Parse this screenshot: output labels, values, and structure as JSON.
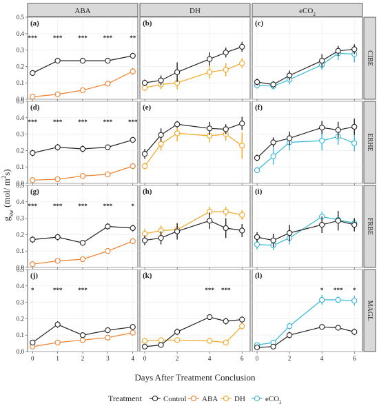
{
  "chart_data": {
    "type": "line",
    "facet_columns": [
      "ABA",
      "DH",
      "eCO2"
    ],
    "facet_rows": [
      "CIBE",
      "ERHE",
      "FRBE",
      "MAGL"
    ],
    "ylabel": "gsw (mol/m²s)",
    "ylim": [
      0,
      0.5
    ],
    "yticks": [
      "0.0",
      "0.1",
      "0.2",
      "0.3",
      "0.4",
      "0.5"
    ],
    "xlabel": "Days After Treatment Conclusion",
    "legend": {
      "title": "Treatment",
      "position": "bottom",
      "items": [
        {
          "label": "Control",
          "color": "#222222"
        },
        {
          "label": "ABA",
          "color": "#f07f2c"
        },
        {
          "label": "DH",
          "color": "#f2a51f"
        },
        {
          "label": "eCO2",
          "color": "#33b8d6"
        }
      ]
    },
    "series_colors": {
      "Control": "#222222",
      "ABA": "#f07f2c",
      "DH": "#f2a51f",
      "eCO2": "#33b8d6"
    },
    "column_x": {
      "ABA": {
        "ticks": [
          0,
          1,
          2,
          3,
          4
        ],
        "xlim": [
          -0.2,
          4.2
        ]
      },
      "DH": {
        "ticks": [
          0,
          2,
          4,
          6
        ],
        "xlim": [
          -0.3,
          6.5
        ]
      },
      "eCO2": {
        "ticks": [
          0,
          2,
          4,
          6
        ],
        "xlim": [
          -0.3,
          6.5
        ]
      }
    },
    "panels": [
      {
        "label": "(a)",
        "row": "CIBE",
        "col": "ABA",
        "sig": [
          "***",
          "***",
          "***",
          "***",
          "**"
        ],
        "sig_x": [
          0,
          1,
          2,
          3,
          4
        ],
        "series": [
          {
            "treatment": "Control",
            "x": [
              0,
              1,
              2,
              3,
              4
            ],
            "y": [
              0.16,
              0.235,
              0.235,
              0.235,
              0.265
            ],
            "err": [
              0.01,
              0.01,
              0.01,
              0.01,
              0.01
            ]
          },
          {
            "treatment": "ABA",
            "x": [
              0,
              1,
              2,
              3,
              4
            ],
            "y": [
              0.015,
              0.03,
              0.055,
              0.095,
              0.17
            ],
            "err": [
              0.005,
              0.005,
              0.008,
              0.008,
              0.02
            ]
          }
        ]
      },
      {
        "label": "(b)",
        "row": "CIBE",
        "col": "DH",
        "sig": [],
        "sig_x": [],
        "series": [
          {
            "treatment": "Control",
            "x": [
              0,
              1,
              2,
              4,
              5,
              6
            ],
            "y": [
              0.1,
              0.115,
              0.165,
              0.245,
              0.285,
              0.32
            ],
            "err": [
              0.02,
              0.03,
              0.06,
              0.04,
              0.03,
              0.03
            ]
          },
          {
            "treatment": "DH",
            "x": [
              0,
              1,
              2,
              4,
              5,
              6
            ],
            "y": [
              0.07,
              0.09,
              0.1,
              0.165,
              0.18,
              0.22
            ],
            "err": [
              0.02,
              0.03,
              0.04,
              0.04,
              0.04,
              0.03
            ]
          }
        ]
      },
      {
        "label": "(c)",
        "row": "CIBE",
        "col": "eCO2",
        "sig": [],
        "sig_x": [],
        "series": [
          {
            "treatment": "Control",
            "x": [
              0,
              1,
              2,
              4,
              5,
              6
            ],
            "y": [
              0.105,
              0.09,
              0.145,
              0.235,
              0.295,
              0.305
            ],
            "err": [
              0.02,
              0.02,
              0.03,
              0.04,
              0.03,
              0.03
            ]
          },
          {
            "treatment": "eCO2",
            "x": [
              0,
              1,
              2,
              4,
              5,
              6
            ],
            "y": [
              0.085,
              0.08,
              0.12,
              0.21,
              0.28,
              0.275
            ],
            "err": [
              0.02,
              0.02,
              0.03,
              0.03,
              0.04,
              0.05
            ]
          }
        ]
      },
      {
        "label": "(d)",
        "row": "ERHE",
        "col": "ABA",
        "sig": [
          "***",
          "***",
          "***",
          "***",
          "***"
        ],
        "sig_x": [
          0,
          1,
          2,
          3,
          4
        ],
        "series": [
          {
            "treatment": "Control",
            "x": [
              0,
              1,
              2,
              3,
              4
            ],
            "y": [
              0.185,
              0.22,
              0.21,
              0.22,
              0.265
            ],
            "err": [
              0.02,
              0.02,
              0.02,
              0.01,
              0.01
            ]
          },
          {
            "treatment": "ABA",
            "x": [
              0,
              1,
              2,
              3,
              4
            ],
            "y": [
              0.02,
              0.025,
              0.045,
              0.055,
              0.105
            ],
            "err": [
              0.005,
              0.005,
              0.008,
              0.008,
              0.015
            ]
          }
        ]
      },
      {
        "label": "(e)",
        "row": "ERHE",
        "col": "DH",
        "sig": [],
        "sig_x": [],
        "series": [
          {
            "treatment": "Control",
            "x": [
              0,
              1,
              2,
              4,
              5,
              6
            ],
            "y": [
              0.18,
              0.295,
              0.36,
              0.335,
              0.33,
              0.365
            ],
            "err": [
              0.03,
              0.04,
              0.02,
              0.04,
              0.03,
              0.04
            ]
          },
          {
            "treatment": "DH",
            "x": [
              0,
              1,
              2,
              4,
              5,
              6
            ],
            "y": [
              0.105,
              0.24,
              0.305,
              0.29,
              0.3,
              0.23
            ],
            "err": [
              0.02,
              0.04,
              0.05,
              0.04,
              0.04,
              0.08
            ]
          }
        ]
      },
      {
        "label": "(f)",
        "row": "ERHE",
        "col": "eCO2",
        "sig": [],
        "sig_x": [],
        "series": [
          {
            "treatment": "Control",
            "x": [
              0,
              1,
              2,
              4,
              5,
              6
            ],
            "y": [
              0.155,
              0.25,
              0.275,
              0.34,
              0.325,
              0.345
            ],
            "err": [
              0.02,
              0.03,
              0.04,
              0.04,
              0.05,
              0.05
            ]
          },
          {
            "treatment": "eCO2",
            "x": [
              0,
              1,
              2,
              4,
              5,
              6
            ],
            "y": [
              0.08,
              0.165,
              0.25,
              0.26,
              0.285,
              0.245
            ],
            "err": [
              0.015,
              0.05,
              0.05,
              0.06,
              0.05,
              0.05
            ]
          }
        ]
      },
      {
        "label": "(g)",
        "row": "FRBE",
        "col": "ABA",
        "sig": [
          "***",
          "***",
          "***",
          "***",
          "*"
        ],
        "sig_x": [
          0,
          1,
          2,
          3,
          4
        ],
        "series": [
          {
            "treatment": "Control",
            "x": [
              0,
              1,
              2,
              3,
              4
            ],
            "y": [
              0.17,
              0.185,
              0.15,
              0.25,
              0.24
            ],
            "err": [
              0.02,
              0.02,
              0.01,
              0.02,
              0.02
            ]
          },
          {
            "treatment": "ABA",
            "x": [
              0,
              1,
              2,
              3,
              4
            ],
            "y": [
              0.02,
              0.04,
              0.05,
              0.1,
              0.16
            ],
            "err": [
              0.005,
              0.005,
              0.008,
              0.01,
              0.015
            ]
          }
        ]
      },
      {
        "label": "(h)",
        "row": "FRBE",
        "col": "DH",
        "sig": [],
        "sig_x": [],
        "series": [
          {
            "treatment": "Control",
            "x": [
              0,
              1,
              2,
              4,
              5,
              6
            ],
            "y": [
              0.165,
              0.18,
              0.22,
              0.285,
              0.24,
              0.225
            ],
            "err": [
              0.03,
              0.04,
              0.05,
              0.05,
              0.06,
              0.04
            ]
          },
          {
            "treatment": "DH",
            "x": [
              0,
              1,
              2,
              4,
              5,
              6
            ],
            "y": [
              0.205,
              0.225,
              0.23,
              0.34,
              0.34,
              0.32
            ],
            "err": [
              0.03,
              0.03,
              0.04,
              0.03,
              0.03,
              0.03
            ]
          }
        ]
      },
      {
        "label": "(i)",
        "row": "FRBE",
        "col": "eCO2",
        "sig": [],
        "sig_x": [],
        "series": [
          {
            "treatment": "Control",
            "x": [
              0,
              1,
              2,
              4,
              5,
              6
            ],
            "y": [
              0.185,
              0.165,
              0.21,
              0.26,
              0.285,
              0.26
            ],
            "err": [
              0.03,
              0.04,
              0.05,
              0.05,
              0.06,
              0.04
            ]
          },
          {
            "treatment": "eCO2",
            "x": [
              0,
              1,
              2,
              4,
              5,
              6
            ],
            "y": [
              0.14,
              0.135,
              0.18,
              0.31,
              0.29,
              0.27
            ],
            "err": [
              0.03,
              0.03,
              0.04,
              0.03,
              0.03,
              0.03
            ]
          }
        ]
      },
      {
        "label": "(j)",
        "row": "MAGL",
        "col": "ABA",
        "sig": [
          "*",
          "***",
          "***"
        ],
        "sig_x": [
          0,
          1,
          2
        ],
        "series": [
          {
            "treatment": "Control",
            "x": [
              0,
              1,
              2,
              3,
              4
            ],
            "y": [
              0.055,
              0.165,
              0.1,
              0.13,
              0.15
            ],
            "err": [
              0.01,
              0.02,
              0.01,
              0.01,
              0.01
            ]
          },
          {
            "treatment": "ABA",
            "x": [
              0,
              1,
              2,
              3,
              4
            ],
            "y": [
              0.03,
              0.055,
              0.07,
              0.085,
              0.115
            ],
            "err": [
              0.005,
              0.005,
              0.008,
              0.008,
              0.01
            ]
          }
        ]
      },
      {
        "label": "(k)",
        "row": "MAGL",
        "col": "DH",
        "sig": [
          "***",
          "***"
        ],
        "sig_x": [
          4,
          5
        ],
        "series": [
          {
            "treatment": "Control",
            "x": [
              0,
              1,
              2,
              4,
              5,
              6
            ],
            "y": [
              0.03,
              0.04,
              0.12,
              0.21,
              0.185,
              0.195
            ],
            "err": [
              0.01,
              0.01,
              0.02,
              0.015,
              0.02,
              0.02
            ]
          },
          {
            "treatment": "DH",
            "x": [
              0,
              1,
              2,
              4,
              5,
              6
            ],
            "y": [
              0.065,
              0.07,
              0.07,
              0.065,
              0.055,
              0.155
            ],
            "err": [
              0.01,
              0.01,
              0.01,
              0.01,
              0.01,
              0.02
            ]
          }
        ]
      },
      {
        "label": "(l)",
        "row": "MAGL",
        "col": "eCO2",
        "sig": [
          "*",
          "***",
          "*"
        ],
        "sig_x": [
          4,
          5,
          6
        ],
        "series": [
          {
            "treatment": "Control",
            "x": [
              0,
              1,
              2,
              4,
              5,
              6
            ],
            "y": [
              0.025,
              0.03,
              0.1,
              0.15,
              0.145,
              0.12
            ],
            "err": [
              0.01,
              0.01,
              0.02,
              0.01,
              0.01,
              0.02
            ]
          },
          {
            "treatment": "eCO2",
            "x": [
              0,
              1,
              2,
              4,
              5,
              6
            ],
            "y": [
              0.04,
              0.055,
              0.155,
              0.315,
              0.315,
              0.31
            ],
            "err": [
              0.01,
              0.01,
              0.02,
              0.03,
              0.02,
              0.03
            ]
          }
        ]
      }
    ]
  }
}
